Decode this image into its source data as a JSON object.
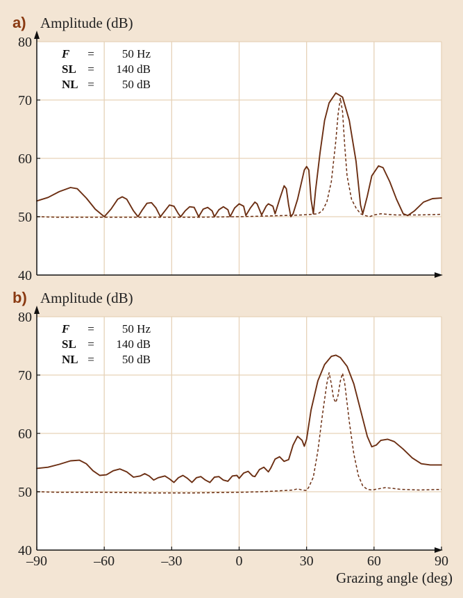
{
  "chart_data": [
    {
      "type": "line",
      "panel_label": "a)",
      "ylabel": "Amplitude (dB)",
      "xlabel": "",
      "xlim": [
        -90,
        90
      ],
      "ylim": [
        40,
        80
      ],
      "x_ticks": [],
      "y_ticks": [
        "40",
        "50",
        "60",
        "70",
        "80"
      ],
      "grid": true,
      "params": [
        {
          "name": "F",
          "eq": "=",
          "value": "50 Hz"
        },
        {
          "name": "SL",
          "eq": "=",
          "value": "140 dB"
        },
        {
          "name": "NL",
          "eq": "=",
          "value": "50 dB"
        }
      ],
      "series": [
        {
          "style": "solid",
          "color": "#6b2e12",
          "points": [
            [
              -90,
              52.7
            ],
            [
              -85,
              53.3
            ],
            [
              -80,
              54.3
            ],
            [
              -75,
              55.0
            ],
            [
              -72,
              54.8
            ],
            [
              -68,
              53.2
            ],
            [
              -64,
              51.3
            ],
            [
              -60,
              50.0
            ],
            [
              -57,
              51.3
            ],
            [
              -54,
              53.0
            ],
            [
              -52,
              53.4
            ],
            [
              -50,
              53.0
            ],
            [
              -47,
              51.0
            ],
            [
              -45,
              50.0
            ],
            [
              -43,
              51.2
            ],
            [
              -41,
              52.3
            ],
            [
              -39,
              52.4
            ],
            [
              -37,
              51.5
            ],
            [
              -35,
              50.0
            ],
            [
              -33,
              51.0
            ],
            [
              -31,
              52.0
            ],
            [
              -29,
              51.8
            ],
            [
              -27,
              50.5
            ],
            [
              -26,
              50.0
            ],
            [
              -24,
              51.0
            ],
            [
              -22,
              51.7
            ],
            [
              -20,
              51.6
            ],
            [
              -18,
              50.0
            ],
            [
              -16,
              51.3
            ],
            [
              -14,
              51.6
            ],
            [
              -12,
              51.0
            ],
            [
              -11,
              50.0
            ],
            [
              -9,
              51.2
            ],
            [
              -7,
              51.7
            ],
            [
              -5,
              51.2
            ],
            [
              -4,
              50.0
            ],
            [
              -2,
              51.5
            ],
            [
              0,
              52.2
            ],
            [
              2,
              51.8
            ],
            [
              3,
              50.2
            ],
            [
              5,
              51.5
            ],
            [
              7,
              52.5
            ],
            [
              8,
              52.2
            ],
            [
              10,
              50.3
            ],
            [
              12,
              51.8
            ],
            [
              13,
              52.2
            ],
            [
              15,
              51.8
            ],
            [
              16,
              50.5
            ],
            [
              18,
              53.0
            ],
            [
              20,
              55.3
            ],
            [
              21,
              54.8
            ],
            [
              22,
              52.0
            ],
            [
              23,
              50.0
            ],
            [
              24,
              50.5
            ],
            [
              26,
              53.0
            ],
            [
              29,
              58.0
            ],
            [
              30,
              58.6
            ],
            [
              31,
              58.0
            ],
            [
              32,
              53.0
            ],
            [
              33,
              50.5
            ],
            [
              34,
              54.5
            ],
            [
              36,
              61.0
            ],
            [
              38,
              66.5
            ],
            [
              40,
              69.5
            ],
            [
              43,
              71.2
            ],
            [
              46,
              70.5
            ],
            [
              49,
              66.5
            ],
            [
              52,
              59.5
            ],
            [
              54,
              52.0
            ],
            [
              55,
              50.5
            ],
            [
              57,
              53.5
            ],
            [
              59,
              57.0
            ],
            [
              62,
              58.7
            ],
            [
              64,
              58.4
            ],
            [
              67,
              56.0
            ],
            [
              70,
              53.0
            ],
            [
              73,
              50.5
            ],
            [
              75,
              50.2
            ],
            [
              78,
              51.0
            ],
            [
              82,
              52.5
            ],
            [
              86,
              53.1
            ],
            [
              90,
              53.2
            ]
          ]
        },
        {
          "style": "dashed",
          "color": "#6b2e12",
          "points": [
            [
              -90,
              50.0
            ],
            [
              -80,
              49.9
            ],
            [
              -60,
              49.9
            ],
            [
              -40,
              49.9
            ],
            [
              -20,
              49.9
            ],
            [
              0,
              50.0
            ],
            [
              10,
              50.1
            ],
            [
              20,
              50.2
            ],
            [
              28,
              50.3
            ],
            [
              32,
              50.4
            ],
            [
              35,
              50.5
            ],
            [
              37,
              51.0
            ],
            [
              39,
              52.5
            ],
            [
              41,
              56.0
            ],
            [
              43,
              63.0
            ],
            [
              44,
              67.5
            ],
            [
              45,
              70.3
            ],
            [
              46,
              68.0
            ],
            [
              47,
              62.0
            ],
            [
              48,
              57.0
            ],
            [
              50,
              53.0
            ],
            [
              52,
              51.5
            ],
            [
              54,
              50.5
            ],
            [
              56,
              50.2
            ],
            [
              58,
              50.0
            ],
            [
              60,
              50.3
            ],
            [
              63,
              50.5
            ],
            [
              66,
              50.4
            ],
            [
              70,
              50.3
            ],
            [
              80,
              50.3
            ],
            [
              90,
              50.4
            ]
          ]
        }
      ]
    },
    {
      "type": "line",
      "panel_label": "b)",
      "ylabel": "Amplitude (dB)",
      "xlabel": "Grazing angle (deg)",
      "xlim": [
        -90,
        90
      ],
      "ylim": [
        40,
        80
      ],
      "x_ticks": [
        "–90",
        "–60",
        "–30",
        "0",
        "30",
        "60",
        "90"
      ],
      "y_ticks": [
        "40",
        "50",
        "60",
        "70",
        "80"
      ],
      "grid": true,
      "params": [
        {
          "name": "F",
          "eq": "=",
          "value": "50 Hz"
        },
        {
          "name": "SL",
          "eq": "=",
          "value": "140 dB"
        },
        {
          "name": "NL",
          "eq": "=",
          "value": "50 dB"
        }
      ],
      "series": [
        {
          "style": "solid",
          "color": "#6b2e12",
          "points": [
            [
              -90,
              54.0
            ],
            [
              -85,
              54.2
            ],
            [
              -80,
              54.7
            ],
            [
              -75,
              55.3
            ],
            [
              -71,
              55.4
            ],
            [
              -68,
              54.8
            ],
            [
              -65,
              53.6
            ],
            [
              -62,
              52.8
            ],
            [
              -59,
              52.9
            ],
            [
              -56,
              53.6
            ],
            [
              -53,
              53.9
            ],
            [
              -50,
              53.4
            ],
            [
              -47,
              52.5
            ],
            [
              -44,
              52.7
            ],
            [
              -42,
              53.1
            ],
            [
              -40,
              52.7
            ],
            [
              -38,
              52.0
            ],
            [
              -36,
              52.4
            ],
            [
              -33,
              52.7
            ],
            [
              -31,
              52.2
            ],
            [
              -29,
              51.6
            ],
            [
              -27,
              52.4
            ],
            [
              -25,
              52.8
            ],
            [
              -23,
              52.3
            ],
            [
              -21,
              51.6
            ],
            [
              -19,
              52.4
            ],
            [
              -17,
              52.6
            ],
            [
              -15,
              52.0
            ],
            [
              -13,
              51.6
            ],
            [
              -11,
              52.5
            ],
            [
              -9,
              52.6
            ],
            [
              -7,
              52.0
            ],
            [
              -5,
              51.8
            ],
            [
              -3,
              52.7
            ],
            [
              -1,
              52.8
            ],
            [
              0,
              52.3
            ],
            [
              2,
              53.2
            ],
            [
              4,
              53.5
            ],
            [
              6,
              52.7
            ],
            [
              7,
              52.6
            ],
            [
              9,
              53.8
            ],
            [
              11,
              54.2
            ],
            [
              13,
              53.4
            ],
            [
              14,
              54.0
            ],
            [
              16,
              55.6
            ],
            [
              18,
              56.0
            ],
            [
              20,
              55.2
            ],
            [
              22,
              55.5
            ],
            [
              24,
              58.0
            ],
            [
              26,
              59.5
            ],
            [
              28,
              58.8
            ],
            [
              29,
              57.8
            ],
            [
              30,
              59.0
            ],
            [
              32,
              64.0
            ],
            [
              35,
              69.0
            ],
            [
              38,
              71.8
            ],
            [
              41,
              73.2
            ],
            [
              43,
              73.4
            ],
            [
              45,
              73.0
            ],
            [
              48,
              71.5
            ],
            [
              51,
              68.5
            ],
            [
              54,
              64.0
            ],
            [
              57,
              59.5
            ],
            [
              59,
              57.7
            ],
            [
              61,
              58.0
            ],
            [
              63,
              58.8
            ],
            [
              66,
              59.0
            ],
            [
              69,
              58.6
            ],
            [
              73,
              57.3
            ],
            [
              77,
              55.8
            ],
            [
              81,
              54.8
            ],
            [
              85,
              54.6
            ],
            [
              90,
              54.6
            ]
          ]
        },
        {
          "style": "dashed",
          "color": "#6b2e12",
          "points": [
            [
              -90,
              50.0
            ],
            [
              -80,
              49.9
            ],
            [
              -60,
              49.9
            ],
            [
              -40,
              49.8
            ],
            [
              -20,
              49.8
            ],
            [
              0,
              49.9
            ],
            [
              10,
              50.0
            ],
            [
              15,
              50.1
            ],
            [
              20,
              50.2
            ],
            [
              24,
              50.3
            ],
            [
              26,
              50.5
            ],
            [
              28,
              50.3
            ],
            [
              30,
              50.2
            ],
            [
              31,
              50.8
            ],
            [
              33,
              52.5
            ],
            [
              35,
              57.0
            ],
            [
              37,
              63.0
            ],
            [
              39,
              68.5
            ],
            [
              40,
              70.4
            ],
            [
              41,
              68.5
            ],
            [
              42,
              66.0
            ],
            [
              43,
              65.3
            ],
            [
              44,
              66.5
            ],
            [
              45,
              69.0
            ],
            [
              46,
              70.3
            ],
            [
              47,
              68.5
            ],
            [
              49,
              62.0
            ],
            [
              51,
              56.5
            ],
            [
              53,
              52.8
            ],
            [
              55,
              51.0
            ],
            [
              57,
              50.4
            ],
            [
              59,
              50.3
            ],
            [
              62,
              50.5
            ],
            [
              65,
              50.7
            ],
            [
              68,
              50.6
            ],
            [
              72,
              50.4
            ],
            [
              80,
              50.3
            ],
            [
              90,
              50.4
            ]
          ]
        }
      ]
    }
  ]
}
